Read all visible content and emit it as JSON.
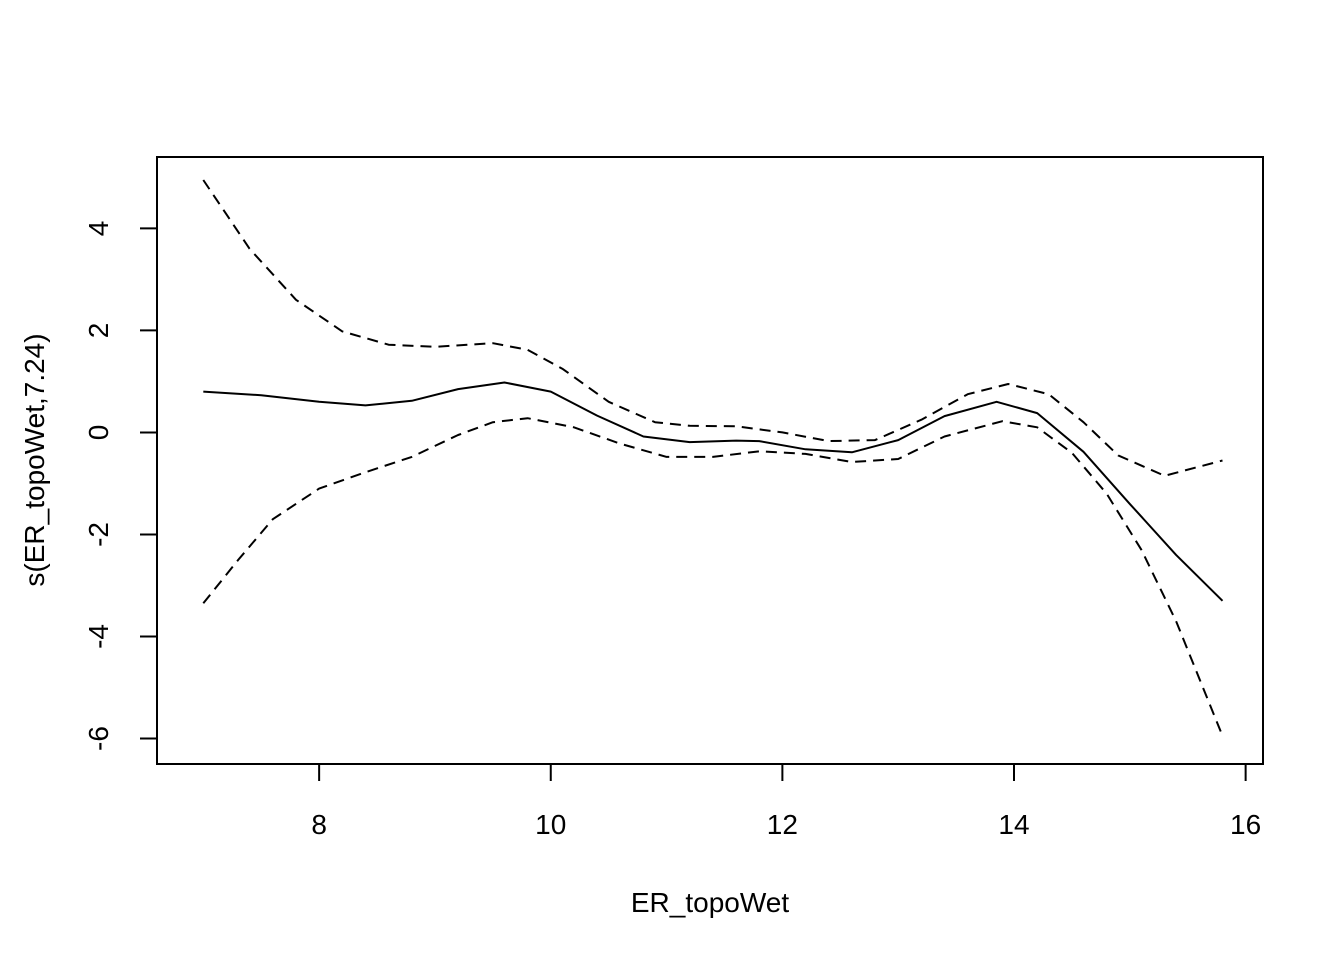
{
  "chart_data": {
    "type": "line",
    "title": "",
    "xlabel": "ER_topoWet",
    "ylabel": "s(ER_topoWet,7.24)",
    "xlim": [
      6.6,
      16.15
    ],
    "ylim": [
      -6.5,
      5.4
    ],
    "x_ticks": [
      8,
      10,
      12,
      14,
      16
    ],
    "y_ticks": [
      -6,
      -4,
      -2,
      0,
      2,
      4
    ],
    "grid": false,
    "legend": "none",
    "series": [
      {
        "style": "solid",
        "x": [
          7.0,
          7.5,
          8.0,
          8.4,
          8.8,
          9.2,
          9.6,
          10.0,
          10.4,
          10.8,
          11.2,
          11.6,
          11.8,
          12.2,
          12.6,
          13.0,
          13.4,
          13.85,
          14.2,
          14.6,
          15.0,
          15.4,
          15.8
        ],
        "values": [
          0.8,
          0.73,
          0.6,
          0.53,
          0.62,
          0.85,
          0.98,
          0.8,
          0.33,
          -0.08,
          -0.19,
          -0.16,
          -0.17,
          -0.33,
          -0.39,
          -0.15,
          0.32,
          0.6,
          0.38,
          -0.38,
          -1.4,
          -2.4,
          -3.3
        ]
      },
      {
        "style": "dashed",
        "x": [
          7.0,
          7.4,
          7.8,
          8.2,
          8.6,
          9.0,
          9.5,
          9.8,
          10.1,
          10.5,
          10.9,
          11.2,
          11.6,
          12.0,
          12.4,
          12.8,
          13.2,
          13.6,
          13.95,
          14.3,
          14.6,
          14.9,
          15.3,
          15.8
        ],
        "values": [
          4.95,
          3.6,
          2.6,
          1.98,
          1.72,
          1.68,
          1.75,
          1.62,
          1.25,
          0.6,
          0.2,
          0.13,
          0.12,
          0.0,
          -0.17,
          -0.15,
          0.25,
          0.75,
          0.95,
          0.75,
          0.2,
          -0.45,
          -0.85,
          -0.55
        ]
      },
      {
        "style": "dashed",
        "x": [
          7.0,
          7.3,
          7.6,
          8.0,
          8.4,
          8.8,
          9.2,
          9.5,
          9.8,
          10.2,
          10.6,
          11.0,
          11.4,
          11.8,
          12.2,
          12.6,
          13.0,
          13.4,
          13.9,
          14.2,
          14.5,
          14.8,
          15.1,
          15.4,
          15.8
        ],
        "values": [
          -3.35,
          -2.5,
          -1.7,
          -1.1,
          -0.78,
          -0.48,
          -0.05,
          0.2,
          0.28,
          0.1,
          -0.22,
          -0.48,
          -0.48,
          -0.37,
          -0.42,
          -0.58,
          -0.52,
          -0.08,
          0.22,
          0.1,
          -0.4,
          -1.2,
          -2.3,
          -3.7,
          -5.95
        ]
      }
    ]
  }
}
